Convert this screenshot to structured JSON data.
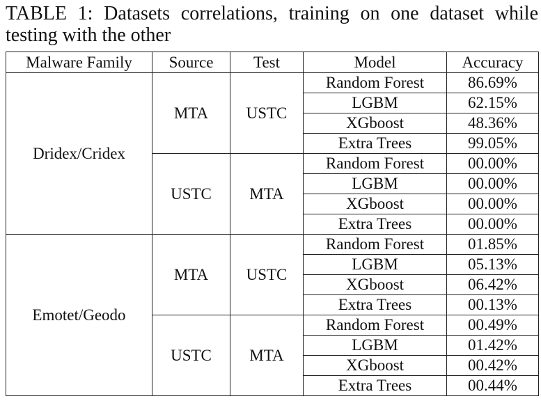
{
  "caption": "TABLE 1: Datasets correlations, training on one dataset while testing with the other",
  "headers": [
    "Malware Family",
    "Source",
    "Test",
    "Model",
    "Accuracy"
  ],
  "families": [
    {
      "name": "Dridex/Cridex",
      "groups": [
        {
          "source": "MTA",
          "test": "USTC",
          "rows": [
            {
              "model": "Random Forest",
              "accuracy": "86.69%"
            },
            {
              "model": "LGBM",
              "accuracy": "62.15%"
            },
            {
              "model": "XGboost",
              "accuracy": "48.36%"
            },
            {
              "model": "Extra Trees",
              "accuracy": "99.05%"
            }
          ]
        },
        {
          "source": "USTC",
          "test": "MTA",
          "rows": [
            {
              "model": "Random Forest",
              "accuracy": "00.00%"
            },
            {
              "model": "LGBM",
              "accuracy": "00.00%"
            },
            {
              "model": "XGboost",
              "accuracy": "00.00%"
            },
            {
              "model": "Extra Trees",
              "accuracy": "00.00%"
            }
          ]
        }
      ]
    },
    {
      "name": "Emotet/Geodo",
      "groups": [
        {
          "source": "MTA",
          "test": "USTC",
          "rows": [
            {
              "model": "Random Forest",
              "accuracy": "01.85%"
            },
            {
              "model": "LGBM",
              "accuracy": "05.13%"
            },
            {
              "model": "XGboost",
              "accuracy": "06.42%"
            },
            {
              "model": "Extra Trees",
              "accuracy": "00.13%"
            }
          ]
        },
        {
          "source": "USTC",
          "test": "MTA",
          "rows": [
            {
              "model": "Random Forest",
              "accuracy": "00.49%"
            },
            {
              "model": "LGBM",
              "accuracy": "01.42%"
            },
            {
              "model": "XGboost",
              "accuracy": "00.42%"
            },
            {
              "model": "Extra Trees",
              "accuracy": "00.44%"
            }
          ]
        }
      ]
    }
  ]
}
